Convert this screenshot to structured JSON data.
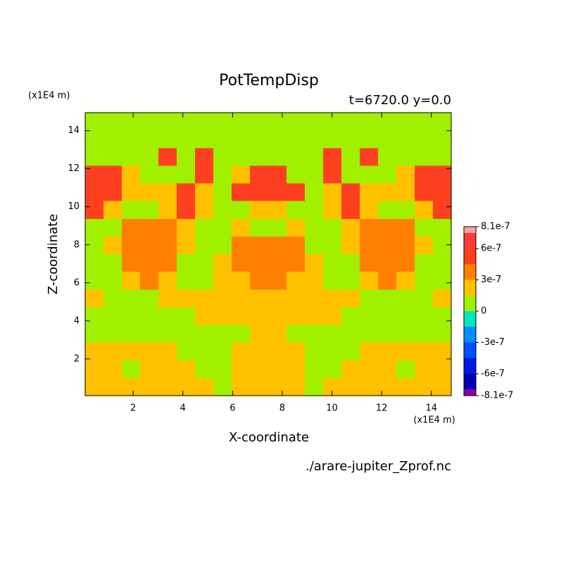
{
  "chart_data": {
    "type": "contour",
    "title": "PotTempDisp",
    "subtitle": "t=6720.0 y=0.0",
    "x_label": "X-coordinate",
    "y_label": "Z-coordinate",
    "x_unit": "(x1E4 m)",
    "y_unit": "(x1E4 m)",
    "source": "./arare-jupiter_Zprof.nc",
    "xlim": [
      0.07,
      14.8
    ],
    "ylim": [
      0.07,
      14.95
    ],
    "xticks": [
      2,
      4,
      6,
      8,
      10,
      12,
      14
    ],
    "yticks": [
      2,
      4,
      6,
      8,
      10,
      12,
      14
    ],
    "levels": [
      -8.1e-07,
      -7.5e-07,
      -6e-07,
      -4.5e-07,
      -3e-07,
      -1.5e-07,
      0,
      1.5e-07,
      3e-07,
      4.5e-07,
      6e-07,
      7.5e-07,
      8.1e-07
    ],
    "colors": [
      "#8a00a8",
      "#0000b4",
      "#0018e8",
      "#0050ff",
      "#0090ff",
      "#00e8c0",
      "#a0f000",
      "#ffc000",
      "#ff8000",
      "#ff4020",
      "#ff3838",
      "#ffa0a0"
    ],
    "colorbar_ticks": [
      8.1e-07,
      6e-07,
      3e-07,
      0,
      -3e-07,
      -6e-07,
      -8.1e-07
    ],
    "z": [
      [
        1e-07,
        1e-07,
        1e-07,
        1e-07,
        1e-07,
        1e-07,
        1e-07,
        1e-07,
        1e-07,
        1e-07,
        1e-07,
        1e-07,
        1e-07,
        1e-07,
        1e-07,
        1e-07,
        1e-07,
        1e-07,
        1e-07,
        1e-07
      ],
      [
        1e-07,
        1e-07,
        1e-07,
        1e-07,
        1e-07,
        1e-07,
        1e-07,
        1e-07,
        1e-07,
        1e-07,
        1e-07,
        1e-07,
        1e-07,
        1e-07,
        1e-07,
        1e-07,
        1e-07,
        1e-07,
        1e-07,
        1e-07
      ],
      [
        1e-07,
        1e-07,
        1e-07,
        1e-07,
        5e-07,
        1e-07,
        5e-07,
        1e-07,
        1e-07,
        1e-07,
        1e-07,
        1e-07,
        1e-07,
        5e-07,
        1e-07,
        5e-07,
        1e-07,
        1e-07,
        1e-07,
        1e-07
      ],
      [
        5e-07,
        5e-07,
        2e-07,
        1e-07,
        1e-07,
        1e-07,
        5e-07,
        1e-07,
        2e-07,
        5e-07,
        5e-07,
        1e-07,
        1e-07,
        5e-07,
        1e-07,
        1e-07,
        1e-07,
        2e-07,
        5e-07,
        5e-07
      ],
      [
        5e-07,
        5e-07,
        2e-07,
        2e-07,
        2e-07,
        5e-07,
        2e-07,
        1e-07,
        5e-07,
        5e-07,
        5e-07,
        5e-07,
        1e-07,
        2e-07,
        5e-07,
        2e-07,
        2e-07,
        2e-07,
        5e-07,
        5e-07
      ],
      [
        5e-07,
        2e-07,
        1e-07,
        1e-07,
        2e-07,
        5e-07,
        2e-07,
        1e-07,
        1e-07,
        2e-07,
        2e-07,
        1e-07,
        1e-07,
        2e-07,
        5e-07,
        2e-07,
        1e-07,
        1e-07,
        2e-07,
        5e-07
      ],
      [
        1e-07,
        1e-07,
        4e-07,
        4e-07,
        4e-07,
        2e-07,
        1e-07,
        1e-07,
        2e-07,
        1e-07,
        1e-07,
        2e-07,
        1e-07,
        1e-07,
        2e-07,
        4e-07,
        4e-07,
        4e-07,
        1e-07,
        1e-07
      ],
      [
        1e-07,
        2e-07,
        4e-07,
        4e-07,
        4e-07,
        2e-07,
        1e-07,
        1e-07,
        4e-07,
        4e-07,
        4e-07,
        4e-07,
        1e-07,
        1e-07,
        2e-07,
        4e-07,
        4e-07,
        4e-07,
        2e-07,
        1e-07
      ],
      [
        1e-07,
        1e-07,
        4e-07,
        4e-07,
        4e-07,
        1e-07,
        1e-07,
        2e-07,
        4e-07,
        4e-07,
        4e-07,
        4e-07,
        2e-07,
        1e-07,
        1e-07,
        4e-07,
        4e-07,
        4e-07,
        1e-07,
        1e-07
      ],
      [
        1e-07,
        1e-07,
        2e-07,
        4e-07,
        2e-07,
        1e-07,
        1e-07,
        2e-07,
        2e-07,
        4e-07,
        4e-07,
        2e-07,
        2e-07,
        1e-07,
        1e-07,
        2e-07,
        4e-07,
        2e-07,
        1e-07,
        1e-07
      ],
      [
        2e-07,
        1e-07,
        1e-07,
        1e-07,
        2e-07,
        2e-07,
        2e-07,
        2e-07,
        2e-07,
        2e-07,
        2e-07,
        2e-07,
        2e-07,
        2e-07,
        2e-07,
        1e-07,
        1e-07,
        1e-07,
        1e-07,
        2e-07
      ],
      [
        1e-07,
        1e-07,
        1e-07,
        1e-07,
        1e-07,
        1e-07,
        2e-07,
        2e-07,
        2e-07,
        2e-07,
        2e-07,
        2e-07,
        2e-07,
        2e-07,
        1e-07,
        1e-07,
        1e-07,
        1e-07,
        1e-07,
        1e-07
      ],
      [
        1e-07,
        1e-07,
        1e-07,
        1e-07,
        1e-07,
        1e-07,
        1e-07,
        1e-07,
        1e-07,
        2e-07,
        2e-07,
        1e-07,
        1e-07,
        1e-07,
        1e-07,
        1e-07,
        1e-07,
        1e-07,
        1e-07,
        1e-07
      ],
      [
        2e-07,
        2e-07,
        2e-07,
        2e-07,
        2e-07,
        1e-07,
        1e-07,
        1e-07,
        2e-07,
        2e-07,
        2e-07,
        2e-07,
        1e-07,
        1e-07,
        1e-07,
        2e-07,
        2e-07,
        2e-07,
        2e-07,
        2e-07
      ],
      [
        2e-07,
        2e-07,
        1e-07,
        2e-07,
        2e-07,
        2e-07,
        1e-07,
        1e-07,
        2e-07,
        2e-07,
        2e-07,
        2e-07,
        1e-07,
        1e-07,
        2e-07,
        2e-07,
        2e-07,
        1e-07,
        2e-07,
        2e-07
      ],
      [
        2e-07,
        2e-07,
        2e-07,
        2e-07,
        2e-07,
        2e-07,
        2e-07,
        1e-07,
        2e-07,
        2e-07,
        2e-07,
        2e-07,
        1e-07,
        2e-07,
        2e-07,
        2e-07,
        2e-07,
        2e-07,
        2e-07,
        2e-07
      ]
    ]
  }
}
